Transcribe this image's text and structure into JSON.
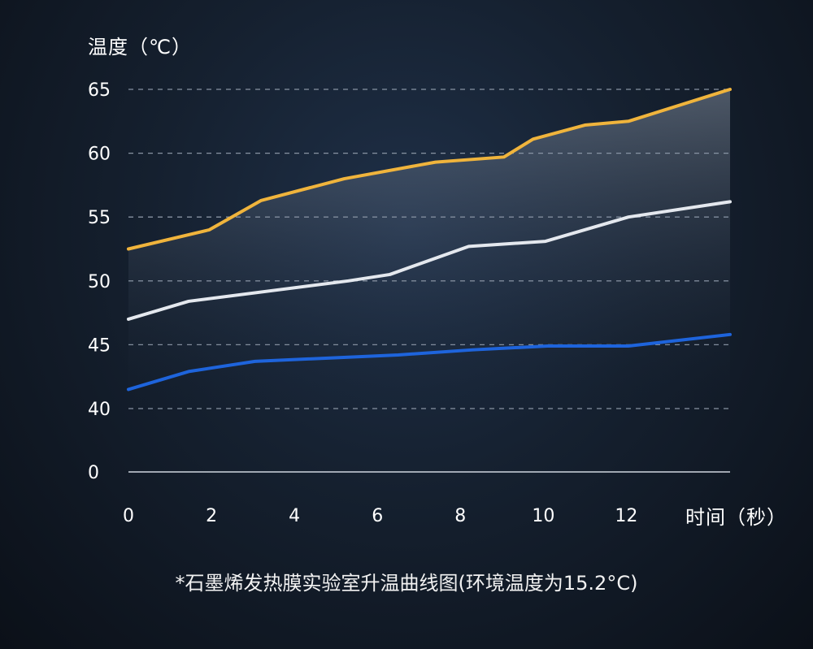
{
  "chart_data": {
    "type": "line",
    "ylabel": "温度（℃）",
    "xlabel": "时间（秒）",
    "caption": "*石墨烯发热膜实验室升温曲线图(环境温度为15.2°C)",
    "y_ticks": [
      "65",
      "60",
      "55",
      "50",
      "45",
      "40",
      "0"
    ],
    "x_ticks": [
      "0",
      "2",
      "4",
      "6",
      "8",
      "10",
      "12"
    ],
    "xlim": [
      0,
      14.5
    ],
    "grid": true,
    "series": [
      {
        "color": "#f0b43c",
        "x": [
          0,
          1.95,
          3.2,
          5.2,
          7.4,
          9.05,
          9.75,
          11,
          12.05,
          14.5
        ],
        "y": [
          52.5,
          54,
          56.3,
          58,
          59.3,
          59.7,
          61.1,
          62.2,
          62.5,
          65
        ]
      },
      {
        "color": "#e4e8ee",
        "x": [
          0,
          1.45,
          5.3,
          6.3,
          8.2,
          10.05,
          12.05,
          14.5
        ],
        "y": [
          47,
          48.4,
          50,
          50.5,
          52.7,
          53.1,
          55,
          56.2
        ]
      },
      {
        "color": "#1e64dc",
        "x": [
          0,
          1.45,
          3.05,
          6.5,
          8.3,
          10.1,
          12.05,
          14.5
        ],
        "y": [
          41.5,
          42.9,
          43.7,
          44.2,
          44.6,
          44.9,
          44.9,
          45.8
        ]
      }
    ]
  }
}
